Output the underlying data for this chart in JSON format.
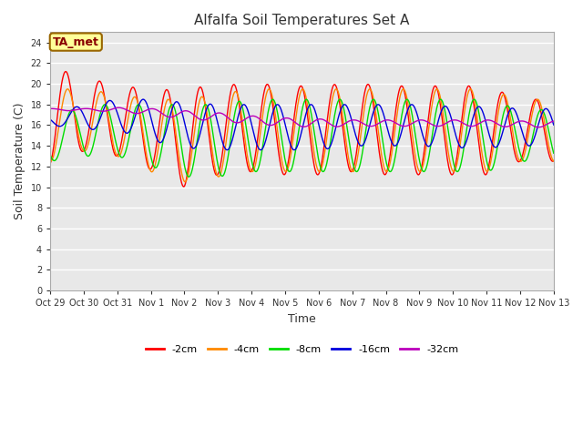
{
  "title": "Alfalfa Soil Temperatures Set A",
  "xlabel": "Time",
  "ylabel": "Soil Temperature (C)",
  "ylim": [
    0,
    25
  ],
  "yticks": [
    0,
    2,
    4,
    6,
    8,
    10,
    12,
    14,
    16,
    18,
    20,
    22,
    24
  ],
  "fig_bg_color": "#ffffff",
  "plot_bg_color": "#e8e8e8",
  "annotation_text": "TA_met",
  "annotation_bg": "#ffff99",
  "annotation_border": "#996600",
  "annotation_text_color": "#880000",
  "legend_entries": [
    "-2cm",
    "-4cm",
    "-8cm",
    "-16cm",
    "-32cm"
  ],
  "line_colors": [
    "#ff0000",
    "#ff8800",
    "#00dd00",
    "#0000dd",
    "#bb00bb"
  ],
  "x_tick_labels": [
    "Oct 29",
    "Oct 30",
    "Oct 31",
    "Nov 1",
    "Nov 2",
    "Nov 3",
    "Nov 4",
    "Nov 5",
    "Nov 6",
    "Nov 7",
    "Nov 8",
    "Nov 9",
    "Nov 10",
    "Nov 11",
    "Nov 12",
    "Nov 13"
  ],
  "n_days": 15,
  "points_per_day": 48
}
